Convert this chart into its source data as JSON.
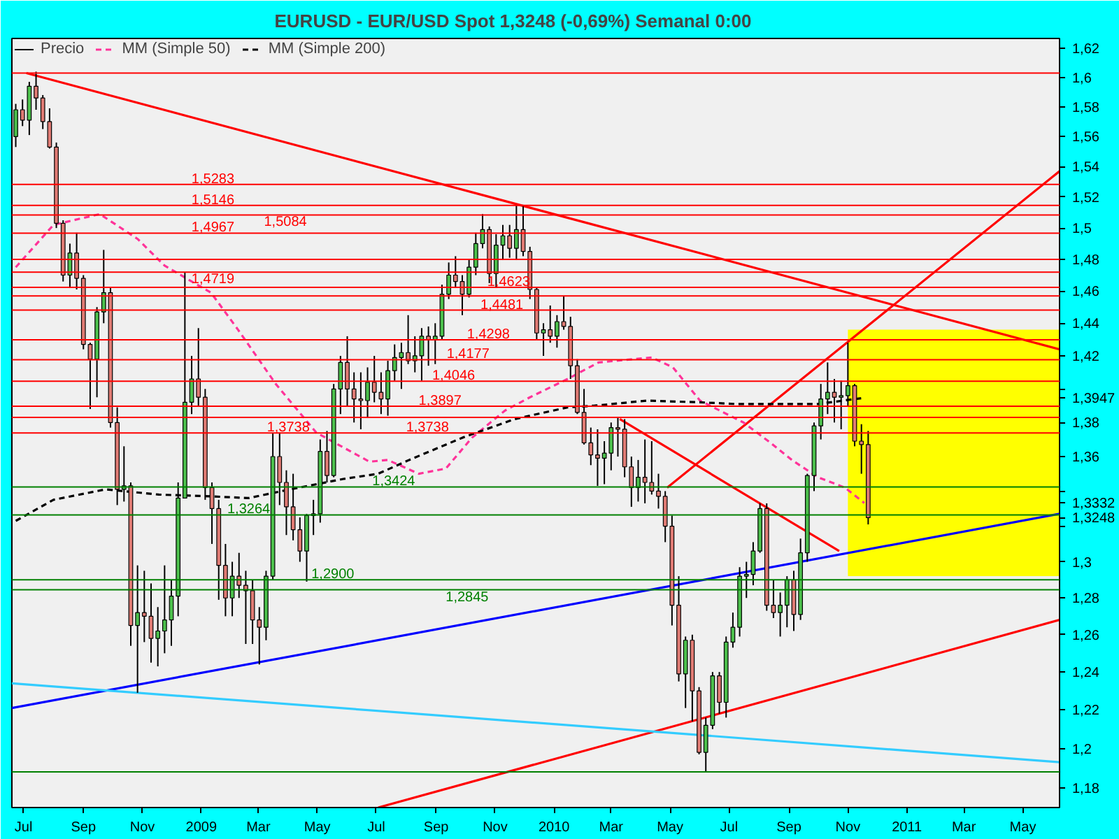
{
  "chart_data": {
    "type": "candlestick",
    "title": "EURUSD - EUR/USD Spot     1,3248 (-0,69%)     Semanal  0:00",
    "log": true,
    "legend": "top left",
    "xlim": [
      "2008-06-19",
      "2011-06-08"
    ],
    "ylim": [
      1.17,
      1.627
    ],
    "xticks": [
      {
        "value": "2008-07-01",
        "label": "Jul"
      },
      {
        "value": "2008-09-01",
        "label": "Sep"
      },
      {
        "value": "2008-11-01",
        "label": "Nov"
      },
      {
        "value": "2009-01-01",
        "label": "2009"
      },
      {
        "value": "2009-03-01",
        "label": "Mar"
      },
      {
        "value": "2009-05-01",
        "label": "May"
      },
      {
        "value": "2009-07-01",
        "label": "Jul"
      },
      {
        "value": "2009-09-01",
        "label": "Sep"
      },
      {
        "value": "2009-11-01",
        "label": "Nov"
      },
      {
        "value": "2010-01-01",
        "label": "2010"
      },
      {
        "value": "2010-03-01",
        "label": "Mar"
      },
      {
        "value": "2010-05-01",
        "label": "May"
      },
      {
        "value": "2010-07-01",
        "label": "Jul"
      },
      {
        "value": "2010-09-01",
        "label": "Sep"
      },
      {
        "value": "2010-11-01",
        "label": "Nov"
      },
      {
        "value": "2011-01-01",
        "label": "2011"
      },
      {
        "value": "2011-03-01",
        "label": "Mar"
      },
      {
        "value": "2011-05-01",
        "label": "May"
      }
    ],
    "yticks": [
      {
        "value": 1.18,
        "label": "1,18"
      },
      {
        "value": 1.2,
        "label": "1,2"
      },
      {
        "value": 1.22,
        "label": "1,22"
      },
      {
        "value": 1.24,
        "label": "1,24"
      },
      {
        "value": 1.26,
        "label": "1,26"
      },
      {
        "value": 1.28,
        "label": "1,28"
      },
      {
        "value": 1.3,
        "label": "1,3"
      },
      {
        "value": 1.32,
        "label": null
      },
      {
        "value": 1.34,
        "label": null
      },
      {
        "value": 1.36,
        "label": "1,36"
      },
      {
        "value": 1.38,
        "label": "1,38"
      },
      {
        "value": 1.4,
        "label": null
      },
      {
        "value": 1.42,
        "label": "1,42"
      },
      {
        "value": 1.44,
        "label": "1,44"
      },
      {
        "value": 1.46,
        "label": "1,46"
      },
      {
        "value": 1.48,
        "label": "1,48"
      },
      {
        "value": 1.5,
        "label": "1,5"
      },
      {
        "value": 1.52,
        "label": "1,52"
      },
      {
        "value": 1.54,
        "label": "1,54"
      },
      {
        "value": 1.56,
        "label": "1,56"
      },
      {
        "value": 1.58,
        "label": "1,58"
      },
      {
        "value": 1.6,
        "label": "1,6"
      },
      {
        "value": 1.62,
        "label": "1,62"
      }
    ],
    "bands": [
      {
        "axis": "y",
        "from": 1.292,
        "to": 1.436,
        "color": "#ffff00"
      }
    ],
    "ref_lines": [
      {
        "axis": "y",
        "value": 1.603,
        "color": "#ff0000"
      },
      {
        "axis": "y",
        "value": 1.5283,
        "color": "#ff0000"
      },
      {
        "axis": "y",
        "value": 1.5146,
        "color": "#ff0000"
      },
      {
        "axis": "y",
        "value": 1.5084,
        "color": "#ff0000"
      },
      {
        "axis": "y",
        "value": 1.4967,
        "color": "#ff0000"
      },
      {
        "axis": "y",
        "value": 1.48,
        "color": "#ff0000"
      },
      {
        "axis": "y",
        "value": 1.4719,
        "color": "#ff0000"
      },
      {
        "axis": "y",
        "value": 1.4623,
        "color": "#ff0000"
      },
      {
        "axis": "y",
        "value": 1.457,
        "color": "#ff0000"
      },
      {
        "axis": "y",
        "value": 1.4481,
        "color": "#ff0000"
      },
      {
        "axis": "y",
        "value": 1.4298,
        "color": "#ff0000"
      },
      {
        "axis": "y",
        "value": 1.4177,
        "color": "#ff0000"
      },
      {
        "axis": "y",
        "value": 1.4046,
        "color": "#ff0000"
      },
      {
        "axis": "y",
        "value": 1.3897,
        "color": "#ff0000"
      },
      {
        "axis": "y",
        "value": 1.383,
        "color": "#ff0000"
      },
      {
        "axis": "y",
        "value": 1.3738,
        "color": "#ff0000"
      },
      {
        "axis": "y",
        "value": 1.3424,
        "color": "#008000"
      },
      {
        "axis": "y",
        "value": 1.3264,
        "color": "#008000"
      },
      {
        "axis": "y",
        "value": 1.29,
        "color": "#008000"
      },
      {
        "axis": "y",
        "value": 1.2845,
        "color": "#008000"
      },
      {
        "axis": "y",
        "value": 1.188,
        "color": "#008000"
      }
    ],
    "annotations": [
      {
        "text": "1,5283",
        "x": "2009-01-13",
        "y": 1.5283
      },
      {
        "text": "1,5146",
        "x": "2009-01-13",
        "y": 1.5146
      },
      {
        "text": "1,5084",
        "x": "2009-03-29",
        "y": 1.5084
      },
      {
        "text": "1,4967",
        "x": "2009-01-13",
        "y": 1.4967
      },
      {
        "text": "1,4719",
        "x": "2009-01-13",
        "y": 1.4719
      },
      {
        "text": "1,4623",
        "x": "2009-11-15",
        "y": 1.4623
      },
      {
        "text": "1,4481",
        "x": "2009-11-08",
        "y": 1.4481
      },
      {
        "text": "1,4298",
        "x": "2009-10-25",
        "y": 1.4298
      },
      {
        "text": "1,4177",
        "x": "2009-10-04",
        "y": 1.4177
      },
      {
        "text": "1,4046",
        "x": "2009-09-19",
        "y": 1.4046
      },
      {
        "text": "1,3897",
        "x": "2009-09-05",
        "y": 1.3897
      },
      {
        "text": "1,3738",
        "x": "2009-08-23",
        "y": 1.3738
      },
      {
        "text": "1,3738",
        "x": "2009-04-01",
        "y": 1.3738
      },
      {
        "text": "1,3424",
        "x": "2009-07-19",
        "y": 1.3424
      },
      {
        "text": "1,3264",
        "x": "2009-02-19",
        "y": 1.3264
      },
      {
        "text": "1,2900",
        "x": "2009-05-17",
        "y": 1.29
      },
      {
        "text": "1,2845",
        "x": "2009-10-03",
        "y": 1.2845
      },
      {
        "text": "1,3947",
        "x": "2011-06-08",
        "y": 1.3947
      },
      {
        "text": "1,3332",
        "x": "2011-06-08",
        "y": 1.3332
      },
      {
        "text": "1,3248",
        "x": "2011-06-08",
        "y": 1.3248
      }
    ],
    "series": [
      {
        "type": "line",
        "color": "#ff0000",
        "x": [
          "2008-07-04",
          "2011-06-08"
        ],
        "values": [
          1.603,
          1.424
        ]
      },
      {
        "type": "line",
        "color": "#ff0000",
        "x": [
          "2009-07-03",
          "2011-06-08"
        ],
        "values": [
          1.17,
          1.268
        ]
      },
      {
        "type": "line",
        "color": "#0000ff",
        "x": [
          "2008-06-19",
          "2011-06-08"
        ],
        "values": [
          1.221,
          1.327
        ]
      },
      {
        "type": "line",
        "color": "#33ccff",
        "x": [
          "2008-06-19",
          "2011-06-08"
        ],
        "values": [
          1.234,
          1.193
        ]
      },
      {
        "type": "line",
        "color": "#ff0000",
        "x": [
          "2010-04-28",
          "2011-06-08"
        ],
        "values": [
          1.342,
          1.537
        ]
      },
      {
        "type": "line",
        "color": "#ff0000",
        "x": [
          "2010-03-10",
          "2010-10-23"
        ],
        "values": [
          1.382,
          1.306
        ]
      },
      {
        "type": "line",
        "name": "MM (Simple 50)",
        "color": "#ff3399",
        "line_style": "dashed",
        "x": [
          "2008-06-23",
          "2008-08-01",
          "2008-09-18",
          "2008-10-27",
          "2008-11-24",
          "2009-01-11",
          "2009-02-08",
          "2009-03-19",
          "2009-04-30",
          "2009-06-24",
          "2009-07-13",
          "2009-08-14",
          "2009-09-11",
          "2009-10-08",
          "2009-11-11",
          "2009-12-07",
          "2010-01-15",
          "2010-02-16",
          "2010-04-12",
          "2010-05-04",
          "2010-06-01",
          "2010-07-16",
          "2010-08-13",
          "2010-09-04",
          "2010-10-01",
          "2010-10-29",
          "2010-11-18"
        ],
        "values": [
          1.475,
          1.502,
          1.509,
          1.493,
          1.476,
          1.459,
          1.436,
          1.403,
          1.374,
          1.357,
          1.358,
          1.35,
          1.353,
          1.371,
          1.387,
          1.395,
          1.406,
          1.416,
          1.419,
          1.413,
          1.393,
          1.38,
          1.368,
          1.358,
          1.348,
          1.342,
          1.3332
        ]
      },
      {
        "type": "line",
        "name": "MM (Simple 200)",
        "color": "#000000",
        "line_style": "dashed",
        "x": [
          "2008-06-23",
          "2008-08-01",
          "2008-09-24",
          "2008-11-18",
          "2009-01-11",
          "2009-02-19",
          "2009-04-03",
          "2009-05-28",
          "2009-07-03",
          "2009-08-04",
          "2009-09-28",
          "2009-11-21",
          "2010-01-15",
          "2010-02-12",
          "2010-04-07",
          "2010-06-01",
          "2010-07-07",
          "2010-10-01",
          "2010-11-18"
        ],
        "values": [
          1.323,
          1.335,
          1.341,
          1.338,
          1.337,
          1.336,
          1.341,
          1.347,
          1.35,
          1.358,
          1.371,
          1.382,
          1.389,
          1.39,
          1.393,
          1.392,
          1.391,
          1.391,
          1.3947
        ]
      },
      {
        "name": "Precio",
        "color": "#000000",
        "x": [
          "2008-06-23",
          "2008-06-30",
          "2008-07-07",
          "2008-07-14",
          "2008-07-21",
          "2008-07-28",
          "2008-08-04",
          "2008-08-11",
          "2008-08-18",
          "2008-08-25",
          "2008-09-01",
          "2008-09-08",
          "2008-09-15",
          "2008-09-22",
          "2008-09-29",
          "2008-10-06",
          "2008-10-13",
          "2008-10-20",
          "2008-10-27",
          "2008-11-03",
          "2008-11-10",
          "2008-11-17",
          "2008-11-24",
          "2008-12-01",
          "2008-12-08",
          "2008-12-15",
          "2008-12-22",
          "2008-12-29",
          "2009-01-05",
          "2009-01-12",
          "2009-01-19",
          "2009-01-26",
          "2009-02-02",
          "2009-02-09",
          "2009-02-16",
          "2009-02-23",
          "2009-03-02",
          "2009-03-09",
          "2009-03-16",
          "2009-03-23",
          "2009-03-30",
          "2009-04-06",
          "2009-04-13",
          "2009-04-20",
          "2009-04-27",
          "2009-05-04",
          "2009-05-11",
          "2009-05-18",
          "2009-05-25",
          "2009-06-01",
          "2009-06-08",
          "2009-06-15",
          "2009-06-22",
          "2009-06-29",
          "2009-07-06",
          "2009-07-13",
          "2009-07-20",
          "2009-07-27",
          "2009-08-03",
          "2009-08-10",
          "2009-08-17",
          "2009-08-24",
          "2009-08-31",
          "2009-09-07",
          "2009-09-14",
          "2009-09-21",
          "2009-09-28",
          "2009-10-05",
          "2009-10-12",
          "2009-10-19",
          "2009-10-26",
          "2009-11-02",
          "2009-11-09",
          "2009-11-16",
          "2009-11-23",
          "2009-11-30",
          "2009-12-07",
          "2009-12-14",
          "2009-12-21",
          "2009-12-28",
          "2010-01-04",
          "2010-01-11",
          "2010-01-18",
          "2010-01-25",
          "2010-02-01",
          "2010-02-08",
          "2010-02-15",
          "2010-02-22",
          "2010-03-01",
          "2010-03-08",
          "2010-03-15",
          "2010-03-22",
          "2010-03-29",
          "2010-04-05",
          "2010-04-12",
          "2010-04-19",
          "2010-04-26",
          "2010-05-03",
          "2010-05-10",
          "2010-05-17",
          "2010-05-24",
          "2010-05-31",
          "2010-06-07",
          "2010-06-14",
          "2010-06-21",
          "2010-06-28",
          "2010-07-05",
          "2010-07-12",
          "2010-07-19",
          "2010-07-26",
          "2010-08-02",
          "2010-08-09",
          "2010-08-16",
          "2010-08-23",
          "2010-08-30",
          "2010-09-06",
          "2010-09-13",
          "2010-09-20",
          "2010-09-27",
          "2010-10-04",
          "2010-10-11",
          "2010-10-18",
          "2010-10-25",
          "2010-11-01",
          "2010-11-08",
          "2010-11-15",
          "2010-11-22"
        ],
        "ohlc": [
          [
            1.56,
            1.582,
            1.553,
            1.578
          ],
          [
            1.578,
            1.585,
            1.567,
            1.571
          ],
          [
            1.571,
            1.597,
            1.561,
            1.594
          ],
          [
            1.594,
            1.604,
            1.578,
            1.586
          ],
          [
            1.586,
            1.588,
            1.565,
            1.57
          ],
          [
            1.57,
            1.579,
            1.552,
            1.553
          ],
          [
            1.553,
            1.556,
            1.5,
            1.503
          ],
          [
            1.503,
            1.505,
            1.466,
            1.47
          ],
          [
            1.47,
            1.49,
            1.462,
            1.484
          ],
          [
            1.484,
            1.497,
            1.461,
            1.468
          ],
          [
            1.468,
            1.47,
            1.424,
            1.427
          ],
          [
            1.427,
            1.428,
            1.388,
            1.418
          ],
          [
            1.418,
            1.45,
            1.395,
            1.447
          ],
          [
            1.447,
            1.486,
            1.44,
            1.459
          ],
          [
            1.459,
            1.462,
            1.377,
            1.38
          ],
          [
            1.38,
            1.389,
            1.332,
            1.341
          ],
          [
            1.341,
            1.366,
            1.334,
            1.343
          ],
          [
            1.343,
            1.345,
            1.254,
            1.265
          ],
          [
            1.265,
            1.298,
            1.229,
            1.272
          ],
          [
            1.272,
            1.295,
            1.256,
            1.27
          ],
          [
            1.27,
            1.288,
            1.245,
            1.258
          ],
          [
            1.258,
            1.275,
            1.243,
            1.262
          ],
          [
            1.262,
            1.298,
            1.25,
            1.268
          ],
          [
            1.268,
            1.29,
            1.254,
            1.281
          ],
          [
            1.281,
            1.345,
            1.27,
            1.336
          ],
          [
            1.336,
            1.472,
            1.336,
            1.392
          ],
          [
            1.392,
            1.42,
            1.385,
            1.406
          ],
          [
            1.406,
            1.437,
            1.39,
            1.395
          ],
          [
            1.395,
            1.4,
            1.335,
            1.342
          ],
          [
            1.342,
            1.345,
            1.31,
            1.33
          ],
          [
            1.33,
            1.335,
            1.279,
            1.298
          ],
          [
            1.298,
            1.31,
            1.27,
            1.28
          ],
          [
            1.28,
            1.3,
            1.27,
            1.292
          ],
          [
            1.292,
            1.305,
            1.28,
            1.287
          ],
          [
            1.287,
            1.295,
            1.255,
            1.284
          ],
          [
            1.284,
            1.29,
            1.255,
            1.268
          ],
          [
            1.268,
            1.275,
            1.244,
            1.264
          ],
          [
            1.264,
            1.295,
            1.257,
            1.292
          ],
          [
            1.292,
            1.374,
            1.29,
            1.36
          ],
          [
            1.36,
            1.374,
            1.332,
            1.345
          ],
          [
            1.345,
            1.352,
            1.315,
            1.331
          ],
          [
            1.331,
            1.35,
            1.312,
            1.318
          ],
          [
            1.318,
            1.325,
            1.3,
            1.306
          ],
          [
            1.306,
            1.327,
            1.289,
            1.326
          ],
          [
            1.326,
            1.335,
            1.315,
            1.327
          ],
          [
            1.327,
            1.37,
            1.322,
            1.363
          ],
          [
            1.363,
            1.375,
            1.345,
            1.349
          ],
          [
            1.349,
            1.403,
            1.348,
            1.4
          ],
          [
            1.4,
            1.42,
            1.385,
            1.416
          ],
          [
            1.416,
            1.432,
            1.39,
            1.4
          ],
          [
            1.4,
            1.41,
            1.38,
            1.394
          ],
          [
            1.394,
            1.41,
            1.376,
            1.393
          ],
          [
            1.393,
            1.413,
            1.383,
            1.404
          ],
          [
            1.404,
            1.42,
            1.392,
            1.398
          ],
          [
            1.398,
            1.41,
            1.385,
            1.394
          ],
          [
            1.394,
            1.417,
            1.384,
            1.411
          ],
          [
            1.411,
            1.427,
            1.405,
            1.419
          ],
          [
            1.419,
            1.428,
            1.4,
            1.422
          ],
          [
            1.422,
            1.445,
            1.415,
            1.417
          ],
          [
            1.417,
            1.432,
            1.41,
            1.42
          ],
          [
            1.42,
            1.437,
            1.405,
            1.432
          ],
          [
            1.432,
            1.438,
            1.414,
            1.43
          ],
          [
            1.43,
            1.44,
            1.415,
            1.432
          ],
          [
            1.432,
            1.464,
            1.43,
            1.458
          ],
          [
            1.458,
            1.478,
            1.455,
            1.47
          ],
          [
            1.47,
            1.482,
            1.462,
            1.466
          ],
          [
            1.466,
            1.47,
            1.445,
            1.458
          ],
          [
            1.458,
            1.48,
            1.456,
            1.475
          ],
          [
            1.475,
            1.497,
            1.47,
            1.49
          ],
          [
            1.49,
            1.509,
            1.487,
            1.499
          ],
          [
            1.499,
            1.501,
            1.465,
            1.471
          ],
          [
            1.471,
            1.496,
            1.462,
            1.489
          ],
          [
            1.489,
            1.502,
            1.48,
            1.495
          ],
          [
            1.495,
            1.502,
            1.481,
            1.487
          ],
          [
            1.487,
            1.515,
            1.48,
            1.499
          ],
          [
            1.499,
            1.514,
            1.482,
            1.485
          ],
          [
            1.485,
            1.488,
            1.455,
            1.461
          ],
          [
            1.461,
            1.462,
            1.43,
            1.434
          ],
          [
            1.434,
            1.44,
            1.42,
            1.436
          ],
          [
            1.436,
            1.451,
            1.428,
            1.432
          ],
          [
            1.432,
            1.445,
            1.425,
            1.441
          ],
          [
            1.441,
            1.457,
            1.436,
            1.438
          ],
          [
            1.438,
            1.444,
            1.406,
            1.414
          ],
          [
            1.414,
            1.418,
            1.385,
            1.386
          ],
          [
            1.386,
            1.4,
            1.367,
            1.368
          ],
          [
            1.368,
            1.377,
            1.355,
            1.361
          ],
          [
            1.361,
            1.376,
            1.343,
            1.359
          ],
          [
            1.359,
            1.369,
            1.344,
            1.362
          ],
          [
            1.362,
            1.38,
            1.352,
            1.377
          ],
          [
            1.377,
            1.383,
            1.36,
            1.376
          ],
          [
            1.376,
            1.382,
            1.348,
            1.354
          ],
          [
            1.354,
            1.36,
            1.331,
            1.342
          ],
          [
            1.342,
            1.358,
            1.334,
            1.348
          ],
          [
            1.348,
            1.37,
            1.333,
            1.345
          ],
          [
            1.345,
            1.369,
            1.338,
            1.34
          ],
          [
            1.34,
            1.35,
            1.33,
            1.337
          ],
          [
            1.337,
            1.34,
            1.311,
            1.32
          ],
          [
            1.32,
            1.326,
            1.265,
            1.276
          ],
          [
            1.276,
            1.292,
            1.235,
            1.239
          ],
          [
            1.239,
            1.259,
            1.221,
            1.257
          ],
          [
            1.257,
            1.26,
            1.214,
            1.23
          ],
          [
            1.23,
            1.232,
            1.197,
            1.198
          ],
          [
            1.198,
            1.216,
            1.188,
            1.212
          ],
          [
            1.212,
            1.24,
            1.21,
            1.238
          ],
          [
            1.238,
            1.24,
            1.218,
            1.224
          ],
          [
            1.224,
            1.259,
            1.216,
            1.256
          ],
          [
            1.256,
            1.272,
            1.253,
            1.264
          ],
          [
            1.264,
            1.297,
            1.259,
            1.292
          ],
          [
            1.292,
            1.3,
            1.28,
            1.293
          ],
          [
            1.293,
            1.311,
            1.287,
            1.306
          ],
          [
            1.306,
            1.333,
            1.305,
            1.33
          ],
          [
            1.33,
            1.333,
            1.273,
            1.276
          ],
          [
            1.276,
            1.29,
            1.269,
            1.272
          ],
          [
            1.272,
            1.283,
            1.259,
            1.276
          ],
          [
            1.276,
            1.292,
            1.264,
            1.29
          ],
          [
            1.29,
            1.295,
            1.262,
            1.271
          ],
          [
            1.271,
            1.313,
            1.268,
            1.305
          ],
          [
            1.305,
            1.35,
            1.3,
            1.349
          ],
          [
            1.349,
            1.38,
            1.34,
            1.378
          ],
          [
            1.378,
            1.403,
            1.37,
            1.394
          ],
          [
            1.394,
            1.416,
            1.385,
            1.398
          ],
          [
            1.398,
            1.406,
            1.38,
            1.395
          ],
          [
            1.395,
            1.405,
            1.376,
            1.396
          ],
          [
            1.396,
            1.428,
            1.39,
            1.402
          ],
          [
            1.402,
            1.403,
            1.366,
            1.369
          ],
          [
            1.369,
            1.379,
            1.35,
            1.367
          ],
          [
            1.367,
            1.375,
            1.321,
            1.3248
          ]
        ],
        "colors": [
          "#4cc04c",
          "#e07b74",
          "#4cc04c",
          "#e07b74",
          "#e07b74",
          "#e07b74",
          "#e07b74",
          "#e07b74",
          "#4cc04c",
          "#e07b74",
          "#e07b74",
          "#e07b74",
          "#4cc04c",
          "#4cc04c",
          "#e07b74",
          "#e07b74",
          "#4cc04c",
          "#e07b74",
          "#4cc04c",
          "#e07b74",
          "#e07b74",
          "#4cc04c",
          "#4cc04c",
          "#4cc04c",
          "#4cc04c",
          "#4cc04c",
          "#4cc04c",
          "#e07b74",
          "#e07b74",
          "#e07b74",
          "#e07b74",
          "#e07b74",
          "#4cc04c",
          "#e07b74",
          "#e07b74",
          "#e07b74",
          "#e07b74",
          "#4cc04c",
          "#4cc04c",
          "#e07b74",
          "#e07b74",
          "#e07b74",
          "#e07b74",
          "#4cc04c",
          "#4cc04c",
          "#4cc04c",
          "#e07b74",
          "#4cc04c",
          "#4cc04c",
          "#e07b74",
          "#e07b74",
          "#e07b74",
          "#4cc04c",
          "#e07b74",
          "#e07b74",
          "#4cc04c",
          "#4cc04c",
          "#4cc04c",
          "#e07b74",
          "#4cc04c",
          "#4cc04c",
          "#e07b74",
          "#4cc04c",
          "#4cc04c",
          "#4cc04c",
          "#e07b74",
          "#e07b74",
          "#4cc04c",
          "#4cc04c",
          "#4cc04c",
          "#e07b74",
          "#4cc04c",
          "#4cc04c",
          "#e07b74",
          "#4cc04c",
          "#e07b74",
          "#e07b74",
          "#e07b74",
          "#4cc04c",
          "#e07b74",
          "#4cc04c",
          "#e07b74",
          "#e07b74",
          "#e07b74",
          "#e07b74",
          "#e07b74",
          "#e07b74",
          "#4cc04c",
          "#4cc04c",
          "#e07b74",
          "#e07b74",
          "#e07b74",
          "#4cc04c",
          "#e07b74",
          "#e07b74",
          "#e07b74",
          "#e07b74",
          "#e07b74",
          "#e07b74",
          "#4cc04c",
          "#e07b74",
          "#e07b74",
          "#4cc04c",
          "#4cc04c",
          "#e07b74",
          "#4cc04c",
          "#4cc04c",
          "#4cc04c",
          "#4cc04c",
          "#4cc04c",
          "#4cc04c",
          "#e07b74",
          "#e07b74",
          "#4cc04c",
          "#4cc04c",
          "#e07b74",
          "#4cc04c",
          "#4cc04c",
          "#4cc04c",
          "#4cc04c",
          "#4cc04c",
          "#e07b74",
          "#4cc04c",
          "#4cc04c",
          "#e07b74",
          "#e07b74",
          "#e07b74"
        ]
      }
    ]
  }
}
